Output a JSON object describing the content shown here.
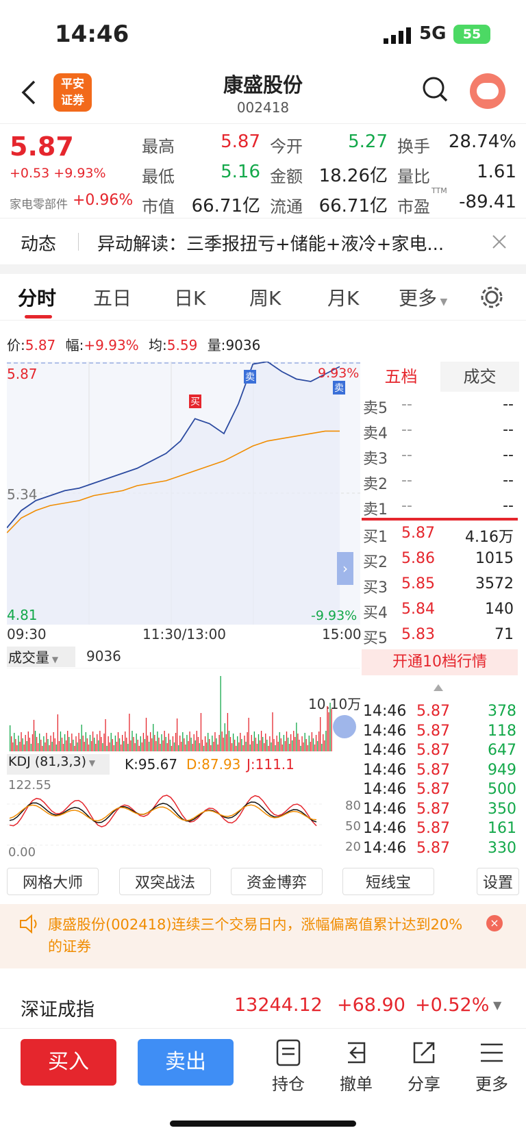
{
  "status": {
    "time": "14:46",
    "network": "5G",
    "battery": "55"
  },
  "nav": {
    "title": "康盛股份",
    "code": "002418",
    "logo_line1": "平安",
    "logo_line2": "证券"
  },
  "quote": {
    "price": "5.87",
    "change": "+0.53",
    "pct": "+9.93%",
    "sector": "家电零部件",
    "sector_pct": "+0.96%",
    "high_lbl": "最高",
    "high": "5.87",
    "low_lbl": "最低",
    "low": "5.16",
    "cap_lbl": "市值",
    "cap": "66.71亿",
    "open_lbl": "今开",
    "open": "5.27",
    "amt_lbl": "金额",
    "amt": "18.26亿",
    "float_lbl": "流通",
    "float": "66.71亿",
    "turn_lbl": "换手",
    "turn": "28.74%",
    "vr_lbl": "量比",
    "vr": "1.61",
    "pe_lbl": "市盈",
    "pe_sup": "TTM",
    "pe": "-89.41"
  },
  "news": {
    "tag": "动态",
    "text": "异动解读：三季报扭亏+储能+液冷+家电..."
  },
  "tabs": [
    "分时",
    "五日",
    "日K",
    "周K",
    "月K",
    "更多"
  ],
  "info": {
    "price_lbl": "价:",
    "price": "5.87",
    "amp_lbl": "幅:",
    "amp": "+9.93%",
    "avg_lbl": "均:",
    "avg": "5.59",
    "vol_lbl": "量:",
    "vol": "9036"
  },
  "chart_data": {
    "type": "line",
    "x_labels": [
      "09:30",
      "11:30/13:00",
      "15:00"
    ],
    "y_max": "5.87",
    "y_mid": "5.34",
    "y_min": "4.81",
    "pct_max": "9.93%",
    "pct_min": "-9.93%",
    "markers": [
      "买",
      "卖",
      "卖"
    ],
    "series": [
      {
        "values": [
          5.2,
          5.27,
          5.31,
          5.33,
          5.35,
          5.36,
          5.38,
          5.4,
          5.42,
          5.44,
          5.47,
          5.5,
          5.55,
          5.64,
          5.62,
          5.58,
          5.7,
          5.86,
          5.87,
          5.83,
          5.8,
          5.79,
          5.82,
          5.85
        ]
      },
      {
        "values": [
          5.18,
          5.24,
          5.27,
          5.29,
          5.3,
          5.31,
          5.33,
          5.34,
          5.35,
          5.37,
          5.38,
          5.39,
          5.41,
          5.43,
          5.45,
          5.47,
          5.5,
          5.53,
          5.55,
          5.56,
          5.57,
          5.58,
          5.59,
          5.59
        ]
      }
    ]
  },
  "volume": {
    "label": "成交量",
    "value": "9036",
    "max": "10.10万"
  },
  "kdj": {
    "label": "KDJ (81,3,3)",
    "k": "K:95.67",
    "d": "D:87.93",
    "j": "J:111.1",
    "top": "122.55",
    "bottom": "0.00",
    "l80": "80",
    "l50": "50",
    "l20": "20"
  },
  "orderbook": {
    "tab1": "五档",
    "tab2": "成交",
    "asks": [
      {
        "l": "卖5",
        "p": "--",
        "v": "--"
      },
      {
        "l": "卖4",
        "p": "--",
        "v": "--"
      },
      {
        "l": "卖3",
        "p": "--",
        "v": "--"
      },
      {
        "l": "卖2",
        "p": "--",
        "v": "--"
      },
      {
        "l": "卖1",
        "p": "--",
        "v": "--"
      }
    ],
    "bids": [
      {
        "l": "买1",
        "p": "5.87",
        "v": "4.16万"
      },
      {
        "l": "买2",
        "p": "5.86",
        "v": "1015"
      },
      {
        "l": "买3",
        "p": "5.85",
        "v": "3572"
      },
      {
        "l": "买4",
        "p": "5.84",
        "v": "140"
      },
      {
        "l": "买5",
        "p": "5.83",
        "v": "71"
      }
    ],
    "upgrade": "开通10档行情"
  },
  "ticks": [
    {
      "t": "14:46",
      "p": "5.87",
      "v": "378"
    },
    {
      "t": "14:46",
      "p": "5.87",
      "v": "118"
    },
    {
      "t": "14:46",
      "p": "5.87",
      "v": "647"
    },
    {
      "t": "14:46",
      "p": "5.87",
      "v": "949"
    },
    {
      "t": "14:46",
      "p": "5.87",
      "v": "500"
    },
    {
      "t": "14:46",
      "p": "5.87",
      "v": "350"
    },
    {
      "t": "14:46",
      "p": "5.87",
      "v": "161"
    },
    {
      "t": "14:46",
      "p": "5.87",
      "v": "330"
    }
  ],
  "tools": [
    "网格大师",
    "双突战法",
    "资金博弈",
    "短线宝",
    "设置"
  ],
  "notice": "康盛股份(002418)连续三个交易日内，涨幅偏离值累计达到20%的证券",
  "index": {
    "name": "深证成指",
    "value": "13244.12",
    "chg": "+68.90",
    "pct": "+0.52%"
  },
  "actions": {
    "buy": "买入",
    "sell": "卖出",
    "hold": "持仓",
    "cancel": "撤单",
    "share": "分享",
    "more": "更多"
  }
}
